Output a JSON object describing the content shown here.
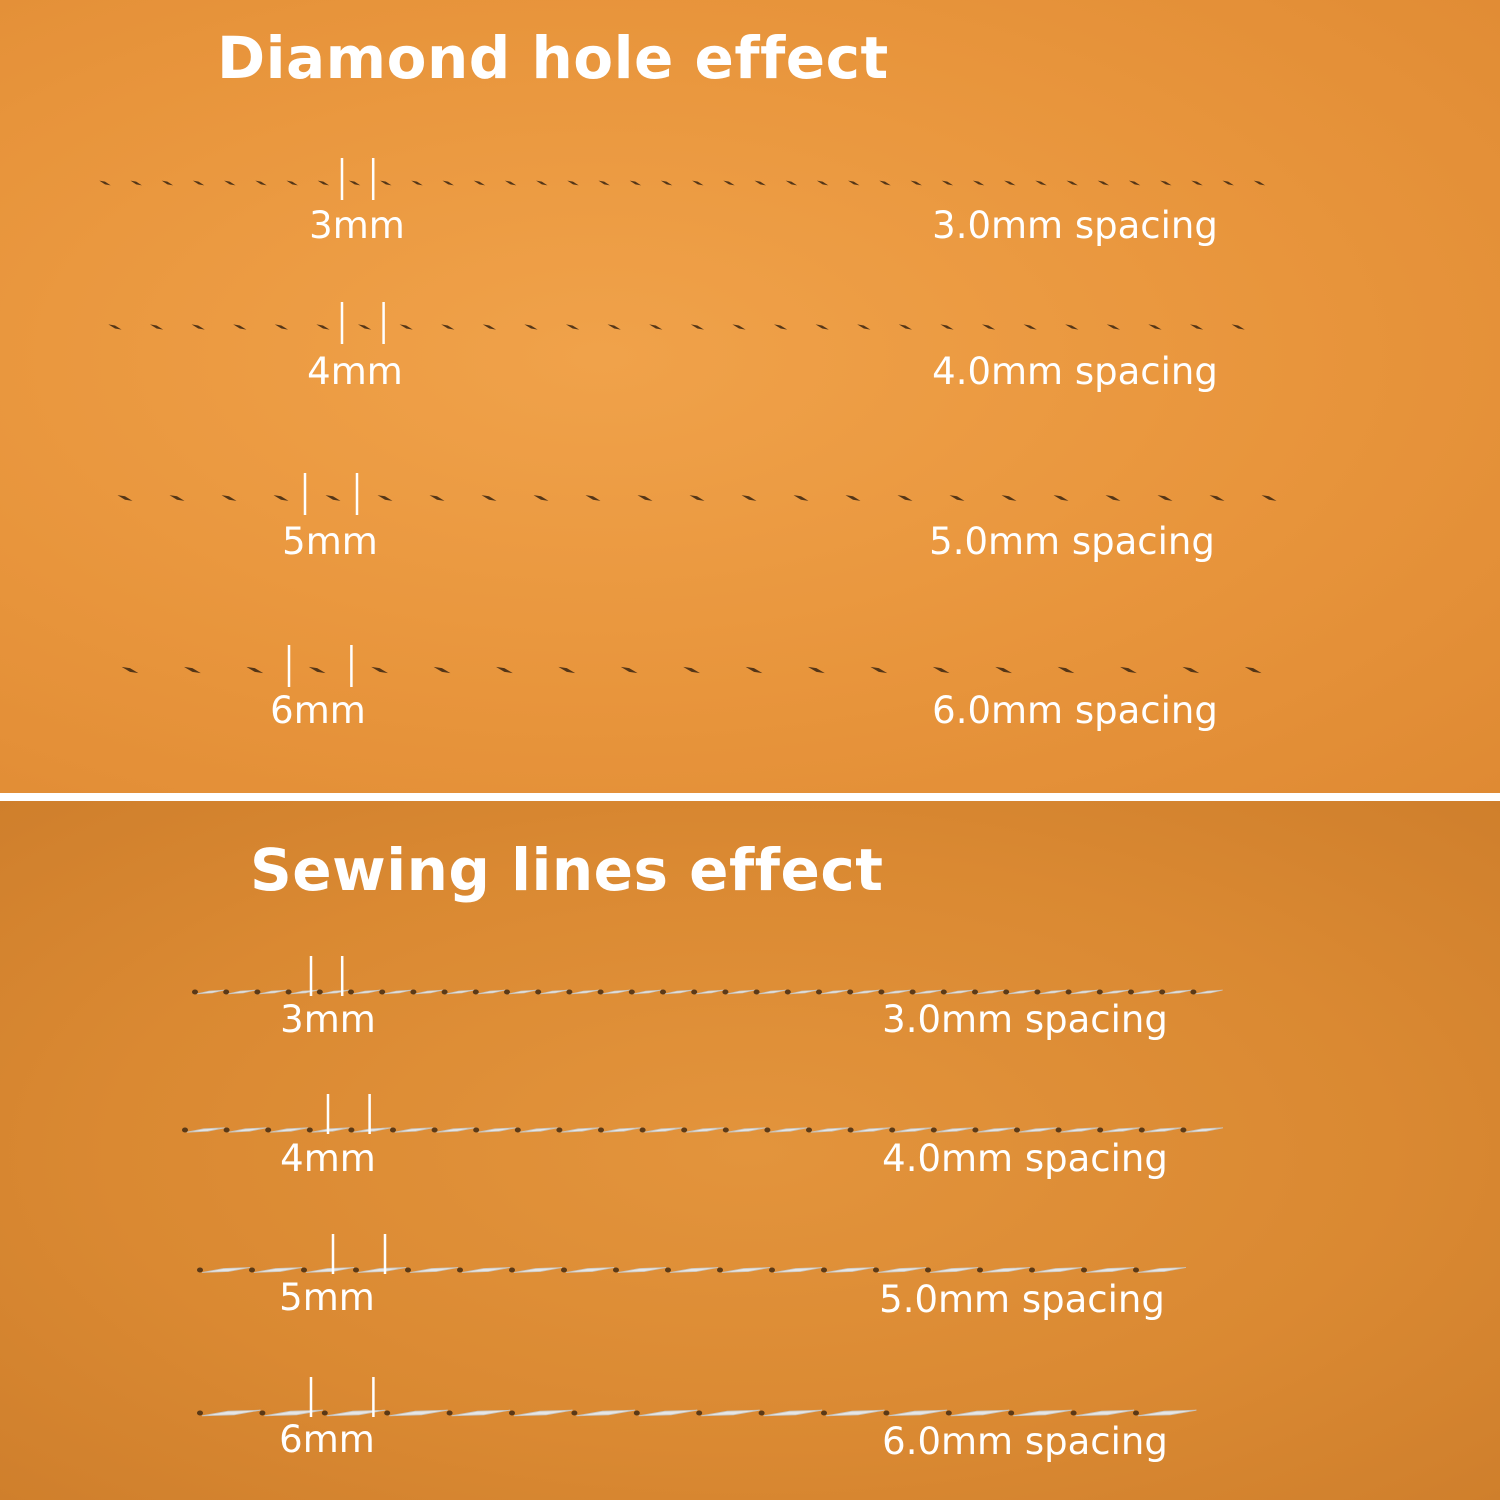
{
  "colors": {
    "leather_top": "#e8953c",
    "leather_bottom": "#da8932",
    "thread": "#e6e6e6",
    "hole": "#3a2410",
    "text": "#ffffff"
  },
  "diamond": {
    "title": "Diamond hole effect",
    "rows": [
      {
        "pitch_mm": 3,
        "label": "3mm",
        "spacing": "3.0mm spacing"
      },
      {
        "pitch_mm": 4,
        "label": "4mm",
        "spacing": "4.0mm spacing"
      },
      {
        "pitch_mm": 5,
        "label": "5mm",
        "spacing": "5.0mm spacing"
      },
      {
        "pitch_mm": 6,
        "label": "6mm",
        "spacing": "6.0mm spacing"
      }
    ]
  },
  "sewing": {
    "title": "Sewing lines effect",
    "rows": [
      {
        "pitch_mm": 3,
        "label": "3mm",
        "spacing": "3.0mm spacing"
      },
      {
        "pitch_mm": 4,
        "label": "4mm",
        "spacing": "4.0mm spacing"
      },
      {
        "pitch_mm": 5,
        "label": "5mm",
        "spacing": "5.0mm spacing"
      },
      {
        "pitch_mm": 6,
        "label": "6mm",
        "spacing": "6.0mm spacing"
      }
    ]
  }
}
